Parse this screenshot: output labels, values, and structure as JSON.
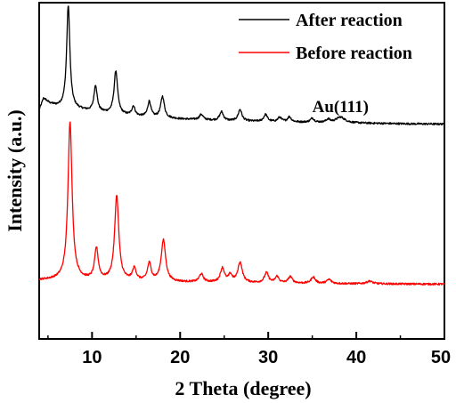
{
  "chart_data": {
    "type": "line",
    "title": "",
    "xlabel": "2 Theta (degree)",
    "ylabel": "Intensity (a.u.)",
    "xlim": [
      4,
      50
    ],
    "ylim": [
      0,
      100
    ],
    "x_ticks": [
      10,
      20,
      30,
      40,
      50
    ],
    "y_ticks_visible": false,
    "grid": false,
    "legend_position": "top-right",
    "annotations": [
      {
        "text": "Au(111)",
        "x": 38.2,
        "y": 67.5
      }
    ],
    "series": [
      {
        "name": "After reaction",
        "color": "#000000",
        "baseline": [
          [
            4.0,
            68.0
          ],
          [
            4.5,
            71.5
          ],
          [
            5.2,
            70.0
          ],
          [
            6.0,
            69.2
          ],
          [
            7.0,
            68.8
          ],
          [
            10.0,
            67.6
          ],
          [
            15.0,
            66.2
          ],
          [
            20.0,
            65.4
          ],
          [
            25.0,
            64.9
          ],
          [
            30.0,
            64.6
          ],
          [
            35.0,
            64.4
          ],
          [
            40.0,
            64.2
          ],
          [
            45.0,
            64.0
          ],
          [
            50.0,
            63.9
          ]
        ],
        "peaks": [
          {
            "x": 7.3,
            "height": 30.5,
            "width": 0.22
          },
          {
            "x": 10.4,
            "height": 7.8,
            "width": 0.22
          },
          {
            "x": 12.7,
            "height": 12.8,
            "width": 0.24
          },
          {
            "x": 14.7,
            "height": 2.8,
            "width": 0.22
          },
          {
            "x": 16.5,
            "height": 4.6,
            "width": 0.22
          },
          {
            "x": 18.0,
            "height": 6.3,
            "width": 0.25
          },
          {
            "x": 22.4,
            "height": 1.6,
            "width": 0.25
          },
          {
            "x": 24.7,
            "height": 2.6,
            "width": 0.25
          },
          {
            "x": 26.8,
            "height": 3.4,
            "width": 0.25
          },
          {
            "x": 29.7,
            "height": 2.1,
            "width": 0.25
          },
          {
            "x": 31.3,
            "height": 1.3,
            "width": 0.25
          },
          {
            "x": 32.4,
            "height": 1.5,
            "width": 0.25
          },
          {
            "x": 35.0,
            "height": 1.2,
            "width": 0.25
          },
          {
            "x": 36.8,
            "height": 0.9,
            "width": 0.25
          },
          {
            "x": 38.2,
            "height": 1.7,
            "width": 0.6
          }
        ]
      },
      {
        "name": "Before reaction",
        "color": "#ff0000",
        "baseline": [
          [
            4.0,
            17.5
          ],
          [
            7.0,
            17.6
          ],
          [
            10.0,
            17.4
          ],
          [
            20.0,
            16.9
          ],
          [
            30.0,
            16.6
          ],
          [
            40.0,
            16.4
          ],
          [
            50.0,
            16.3
          ]
        ],
        "peaks": [
          {
            "x": 7.5,
            "height": 47.0,
            "width": 0.28
          },
          {
            "x": 10.5,
            "height": 9.3,
            "width": 0.25
          },
          {
            "x": 12.8,
            "height": 25.2,
            "width": 0.28
          },
          {
            "x": 14.8,
            "height": 3.6,
            "width": 0.25
          },
          {
            "x": 16.5,
            "height": 5.2,
            "width": 0.25
          },
          {
            "x": 18.1,
            "height": 12.3,
            "width": 0.3
          },
          {
            "x": 22.4,
            "height": 2.4,
            "width": 0.28
          },
          {
            "x": 24.8,
            "height": 4.2,
            "width": 0.28
          },
          {
            "x": 25.7,
            "height": 2.1,
            "width": 0.25
          },
          {
            "x": 26.8,
            "height": 6.0,
            "width": 0.3
          },
          {
            "x": 29.8,
            "height": 3.0,
            "width": 0.28
          },
          {
            "x": 31.0,
            "height": 1.9,
            "width": 0.25
          },
          {
            "x": 32.5,
            "height": 1.9,
            "width": 0.28
          },
          {
            "x": 35.1,
            "height": 1.9,
            "width": 0.28
          },
          {
            "x": 36.9,
            "height": 1.2,
            "width": 0.3
          },
          {
            "x": 41.5,
            "height": 0.8,
            "width": 0.4
          }
        ]
      }
    ]
  }
}
